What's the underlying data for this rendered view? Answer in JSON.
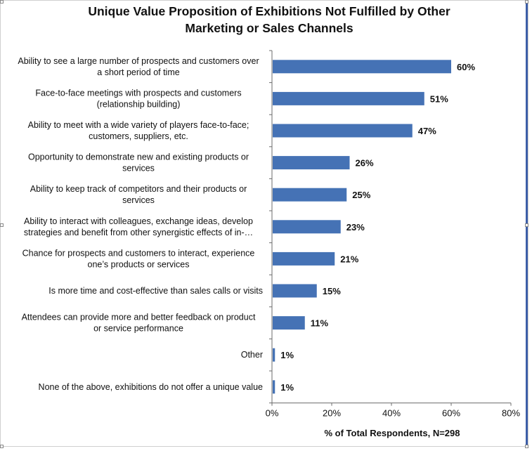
{
  "chart_data": {
    "type": "bar",
    "orientation": "horizontal",
    "title": [
      "Unique Value Proposition of Exhibitions Not Fulfilled by Other",
      "Marketing or Sales Channels"
    ],
    "categories": [
      [
        "Ability to see a large number of prospects and customers over",
        "a short period of time"
      ],
      [
        "Face-to-face meetings with prospects and customers",
        "(relationship building)"
      ],
      [
        "Ability to meet with a wide variety of players face-to-face;",
        "customers, suppliers, etc."
      ],
      [
        "Opportunity to demonstrate new and existing products or",
        "services"
      ],
      [
        "Ability to keep track of competitors and their products or",
        "services"
      ],
      [
        "Ability to interact with colleagues, exchange ideas, develop",
        "strategies and benefit from other synergistic effects of in-…"
      ],
      [
        "Chance for prospects and customers to interact, experience",
        "one’s products or services"
      ],
      [
        "Is more time and cost-effective than sales calls or visits"
      ],
      [
        "Attendees can provide more and better feedback on product",
        "or service performance"
      ],
      [
        "Other"
      ],
      [
        "None of the above, exhibitions do not offer a unique value"
      ]
    ],
    "values": [
      60,
      51,
      47,
      26,
      25,
      23,
      21,
      15,
      11,
      1,
      1
    ],
    "value_labels": [
      "60%",
      "51%",
      "47%",
      "26%",
      "25%",
      "23%",
      "21%",
      "15%",
      "11%",
      "1%",
      "1%"
    ],
    "xlabel": "% of Total Respondents, N=298",
    "xlim": [
      0,
      80
    ],
    "xticks": [
      0,
      20,
      40,
      60,
      80
    ],
    "xtick_labels": [
      "0%",
      "20%",
      "40%",
      "60%",
      "80%"
    ],
    "grid": false,
    "colors": {
      "bar": "#4572b5"
    }
  }
}
